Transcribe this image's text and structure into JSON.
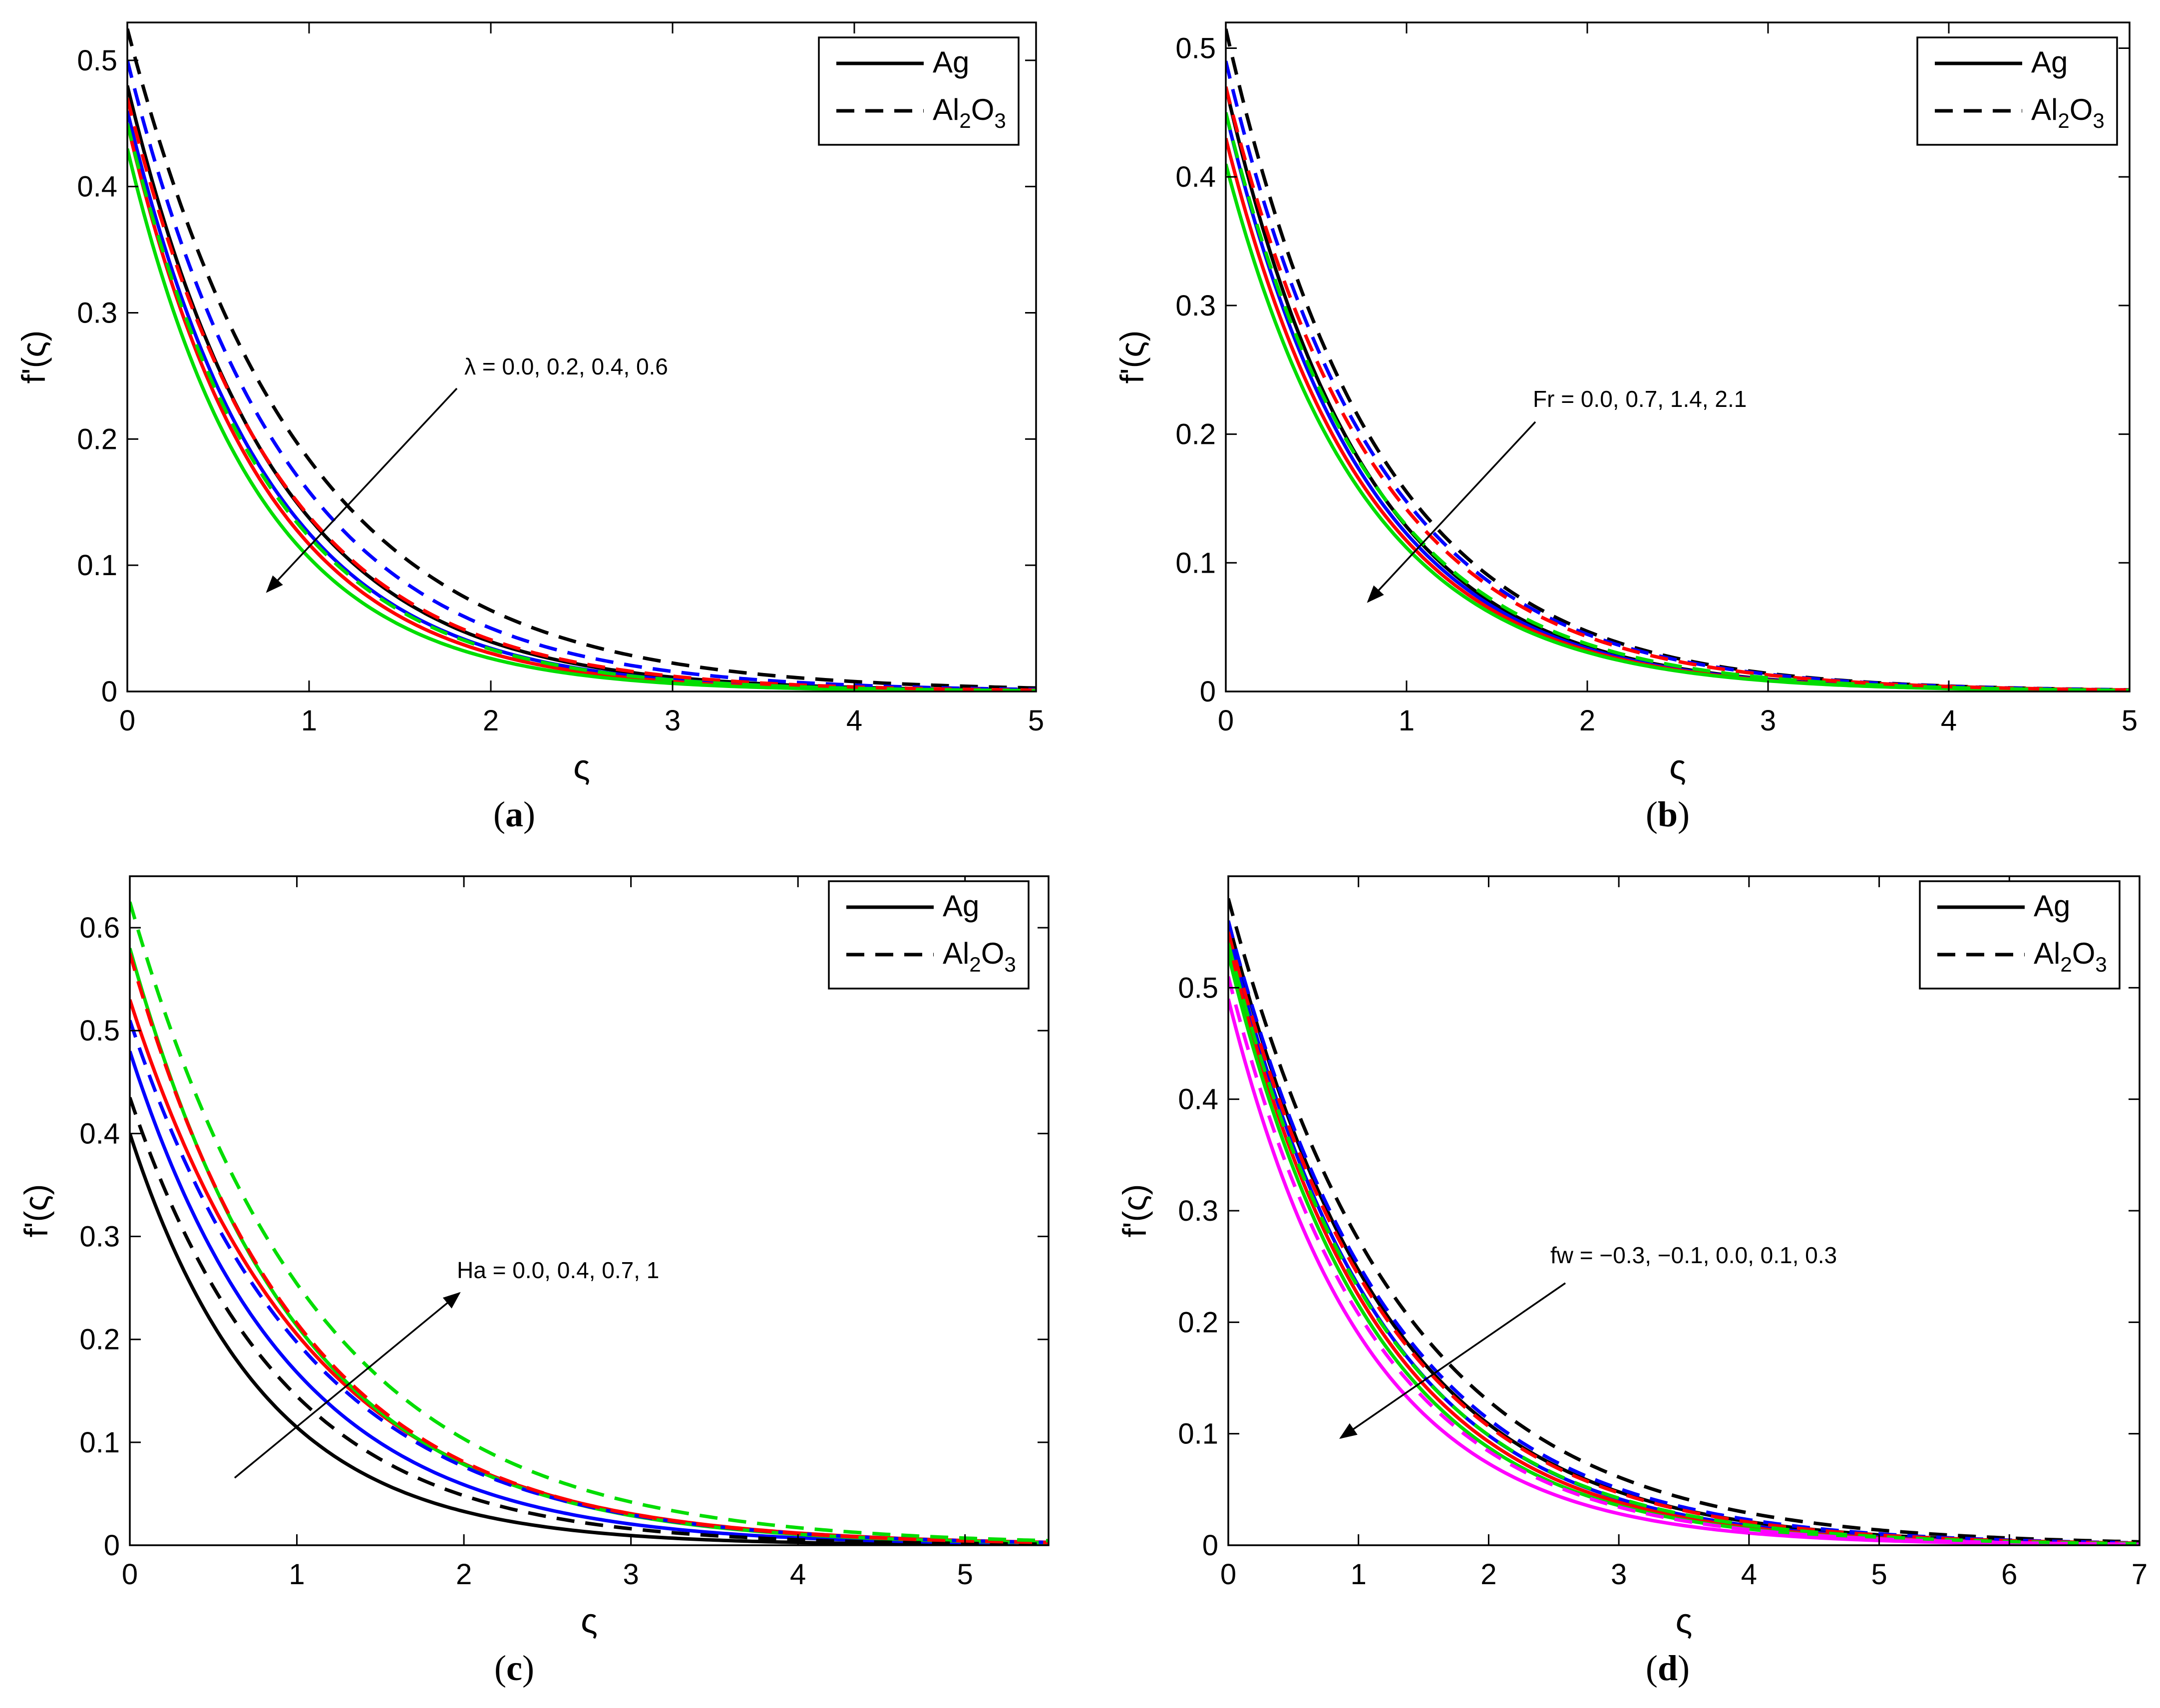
{
  "chart_data": [
    {
      "type": "line",
      "panel_label": "a",
      "xlabel": "ς",
      "ylabel": "f'(ς)",
      "xlim": [
        0,
        5
      ],
      "ylim": [
        0,
        0.53
      ],
      "xticks": [
        "0",
        "1",
        "2",
        "3",
        "4",
        "5"
      ],
      "yticks": [
        "0",
        "0.1",
        "0.2",
        "0.3",
        "0.4",
        "0.5"
      ],
      "legend": [
        {
          "label": "Ag",
          "style": "solid"
        },
        {
          "label": "Al",
          "sub": "2",
          "label2": "O",
          "sub2": "3",
          "style": "dashed"
        }
      ],
      "annotation": "λ = 0.0, 0.2, 0.4, 0.6",
      "series": [
        {
          "name": "Ag, λ = 0.0",
          "color": "#000000",
          "dash": false,
          "y0": 0.48,
          "decay": 1.25
        },
        {
          "name": "Ag, λ = 0.2",
          "color": "#0000ff",
          "dash": false,
          "y0": 0.46,
          "decay": 1.3
        },
        {
          "name": "Ag, λ = 0.4",
          "color": "#ff0000",
          "dash": false,
          "y0": 0.45,
          "decay": 1.35
        },
        {
          "name": "Ag, λ = 0.6",
          "color": "#00dd00",
          "dash": false,
          "y0": 0.43,
          "decay": 1.4
        },
        {
          "name": "Al2O3, λ = 0.0",
          "color": "#000000",
          "dash": true,
          "y0": 0.525,
          "decay": 1.05
        },
        {
          "name": "Al2O3, λ = 0.2",
          "color": "#0000ff",
          "dash": true,
          "y0": 0.5,
          "decay": 1.15
        },
        {
          "name": "Al2O3, λ = 0.4",
          "color": "#ff0000",
          "dash": true,
          "y0": 0.47,
          "decay": 1.22
        },
        {
          "name": "Al2O3, λ = 0.6",
          "color": "#00dd00",
          "dash": true,
          "y0": 0.45,
          "decay": 1.3
        }
      ]
    },
    {
      "type": "line",
      "panel_label": "b",
      "xlabel": "ς",
      "ylabel": "f'(ς)",
      "xlim": [
        0,
        5
      ],
      "ylim": [
        0,
        0.52
      ],
      "xticks": [
        "0",
        "1",
        "2",
        "3",
        "4",
        "5"
      ],
      "yticks": [
        "0",
        "0.1",
        "0.2",
        "0.3",
        "0.4",
        "0.5"
      ],
      "legend": [
        {
          "label": "Ag",
          "style": "solid"
        },
        {
          "label": "Al",
          "sub": "2",
          "label2": "O",
          "sub2": "3",
          "style": "dashed"
        }
      ],
      "annotation": "Fr = 0.0, 0.7, 1.4, 2.1",
      "series": [
        {
          "name": "Ag, Fr = 0.0",
          "color": "#000000",
          "dash": false,
          "y0": 0.47,
          "decay": 1.3
        },
        {
          "name": "Ag, Fr = 0.7",
          "color": "#0000ff",
          "dash": false,
          "y0": 0.45,
          "decay": 1.3
        },
        {
          "name": "Ag, Fr = 1.4",
          "color": "#ff0000",
          "dash": false,
          "y0": 0.43,
          "decay": 1.3
        },
        {
          "name": "Ag, Fr = 2.1",
          "color": "#00dd00",
          "dash": false,
          "y0": 0.41,
          "decay": 1.3
        },
        {
          "name": "Al2O3, Fr = 0.0",
          "color": "#000000",
          "dash": true,
          "y0": 0.515,
          "decay": 1.2
        },
        {
          "name": "Al2O3, Fr = 0.7",
          "color": "#0000ff",
          "dash": true,
          "y0": 0.49,
          "decay": 1.2
        },
        {
          "name": "Al2O3, Fr = 1.4",
          "color": "#ff0000",
          "dash": true,
          "y0": 0.47,
          "decay": 1.2
        },
        {
          "name": "Al2O3, Fr = 2.1",
          "color": "#00dd00",
          "dash": true,
          "y0": 0.45,
          "decay": 1.25
        }
      ]
    },
    {
      "type": "line",
      "panel_label": "c",
      "xlabel": "ς",
      "ylabel": "f'(ς)",
      "xlim": [
        0,
        5.5
      ],
      "ylim": [
        0,
        0.65
      ],
      "xticks": [
        "0",
        "1",
        "2",
        "3",
        "4",
        "5"
      ],
      "yticks": [
        "0",
        "0.1",
        "0.2",
        "0.3",
        "0.4",
        "0.5",
        "0.6"
      ],
      "legend": [
        {
          "label": "Ag",
          "style": "solid"
        },
        {
          "label": "Al",
          "sub": "2",
          "label2": "O",
          "sub2": "3",
          "style": "dashed"
        }
      ],
      "annotation": "Ha = 0.0, 0.4, 0.7, 1",
      "series": [
        {
          "name": "Ag, Ha = 0.0",
          "color": "#000000",
          "dash": false,
          "y0": 0.4,
          "decay": 1.25
        },
        {
          "name": "Ag, Ha = 0.4",
          "color": "#0000ff",
          "dash": false,
          "y0": 0.48,
          "decay": 1.05
        },
        {
          "name": "Ag, Ha = 0.7",
          "color": "#ff0000",
          "dash": false,
          "y0": 0.53,
          "decay": 0.95
        },
        {
          "name": "Ag, Ha = 1",
          "color": "#00dd00",
          "dash": false,
          "y0": 0.58,
          "decay": 1.0
        },
        {
          "name": "Al2O3, Ha = 0.0",
          "color": "#000000",
          "dash": true,
          "y0": 0.435,
          "decay": 1.1
        },
        {
          "name": "Al2O3, Ha = 0.4",
          "color": "#0000ff",
          "dash": true,
          "y0": 0.51,
          "decay": 0.95
        },
        {
          "name": "Al2O3, Ha = 0.7",
          "color": "#ff0000",
          "dash": true,
          "y0": 0.575,
          "decay": 0.98
        },
        {
          "name": "Al2O3, Ha = 1",
          "color": "#00dd00",
          "dash": true,
          "y0": 0.625,
          "decay": 0.9
        }
      ]
    },
    {
      "type": "line",
      "panel_label": "d",
      "xlabel": "ς",
      "ylabel": "f'(ς)",
      "xlim": [
        0,
        7
      ],
      "ylim": [
        0,
        0.6
      ],
      "xticks": [
        "0",
        "1",
        "2",
        "3",
        "4",
        "5",
        "6",
        "7"
      ],
      "yticks": [
        "0",
        "0.1",
        "0.2",
        "0.3",
        "0.4",
        "0.5"
      ],
      "legend": [
        {
          "label": "Ag",
          "style": "solid"
        },
        {
          "label": "Al",
          "sub": "2",
          "label2": "O",
          "sub2": "3",
          "style": "dashed"
        }
      ],
      "annotation": "fw = −0.3, −0.1, 0.0, 0.1, 0.3",
      "series": [
        {
          "name": "Ag, fw = −0.3",
          "color": "#000000",
          "dash": false,
          "y0": 0.56,
          "decay": 0.82
        },
        {
          "name": "Ag, fw = −0.1",
          "color": "#0000ff",
          "dash": false,
          "y0": 0.55,
          "decay": 0.86
        },
        {
          "name": "Ag, fw = 0.0",
          "color": "#ff0000",
          "dash": false,
          "y0": 0.54,
          "decay": 0.88
        },
        {
          "name": "Ag, fw = 0.1",
          "color": "#00dd00",
          "dash": false,
          "y0": 0.53,
          "decay": 0.9
        },
        {
          "name": "Ag, fw = 0.3",
          "color": "#ff00ff",
          "dash": false,
          "y0": 0.49,
          "decay": 0.95
        },
        {
          "name": "Al2O3, fw = −0.3",
          "color": "#000000",
          "dash": true,
          "y0": 0.58,
          "decay": 0.75
        },
        {
          "name": "Al2O3, fw = −0.1",
          "color": "#0000ff",
          "dash": true,
          "y0": 0.56,
          "decay": 0.8
        },
        {
          "name": "Al2O3, fw = 0.0",
          "color": "#ff0000",
          "dash": true,
          "y0": 0.55,
          "decay": 0.82
        },
        {
          "name": "Al2O3, fw = 0.1",
          "color": "#00dd00",
          "dash": true,
          "y0": 0.54,
          "decay": 0.85
        },
        {
          "name": "Al2O3, fw = 0.3",
          "color": "#ff00ff",
          "dash": true,
          "y0": 0.51,
          "decay": 0.9
        }
      ]
    }
  ]
}
